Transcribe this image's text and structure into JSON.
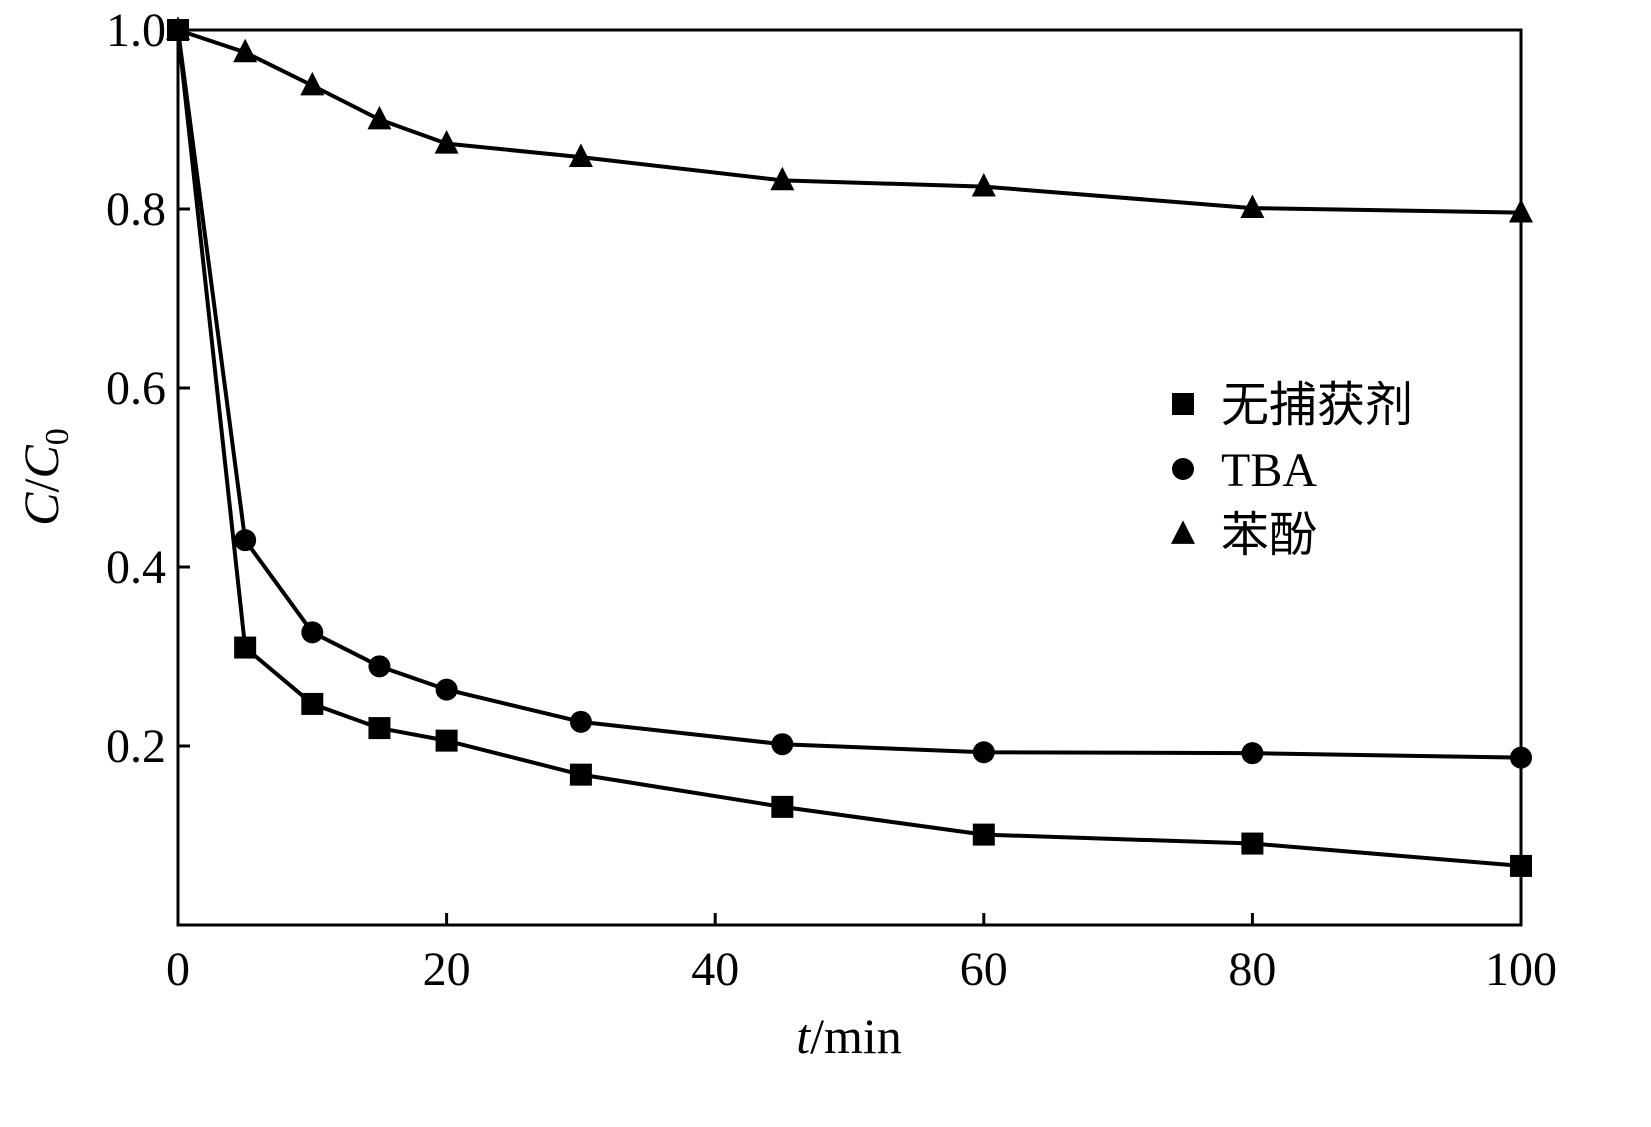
{
  "chart_data": {
    "type": "line",
    "title": "",
    "xlabel": {
      "var": "t",
      "unit": "/min"
    },
    "ylabel": {
      "num": "C",
      "sep": "/",
      "den": "C",
      "sub": "0"
    },
    "xlim": [
      0,
      100
    ],
    "ylim": [
      0,
      1.0
    ],
    "x_ticks": [
      "0",
      "20",
      "40",
      "60",
      "80",
      "100"
    ],
    "x_tick_values": [
      0,
      20,
      40,
      60,
      80,
      100
    ],
    "y_ticks": [
      "0.2",
      "0.4",
      "0.6",
      "0.8",
      "1.0"
    ],
    "y_tick_values": [
      0.2,
      0.4,
      0.6,
      0.8,
      1.0
    ],
    "grid": false,
    "legend_position": "right-middle",
    "series": [
      {
        "name": "无捕获剂",
        "marker": "square",
        "x": [
          0,
          5,
          10,
          15,
          20,
          30,
          45,
          60,
          80,
          100
        ],
        "y": [
          1.0,
          0.31,
          0.247,
          0.22,
          0.206,
          0.168,
          0.132,
          0.101,
          0.091,
          0.066
        ]
      },
      {
        "name": "TBA",
        "marker": "circle",
        "x": [
          0,
          5,
          10,
          15,
          20,
          30,
          45,
          60,
          80,
          100
        ],
        "y": [
          1.0,
          0.43,
          0.327,
          0.289,
          0.263,
          0.227,
          0.202,
          0.193,
          0.192,
          0.187
        ]
      },
      {
        "name": "苯酚",
        "marker": "triangle",
        "x": [
          0,
          5,
          10,
          15,
          20,
          30,
          45,
          60,
          80,
          100
        ],
        "y": [
          1.0,
          0.975,
          0.938,
          0.9,
          0.873,
          0.858,
          0.832,
          0.825,
          0.801,
          0.796
        ]
      }
    ],
    "colors": {
      "line": "#000000",
      "axis": "#000000",
      "background": "#ffffff"
    }
  }
}
